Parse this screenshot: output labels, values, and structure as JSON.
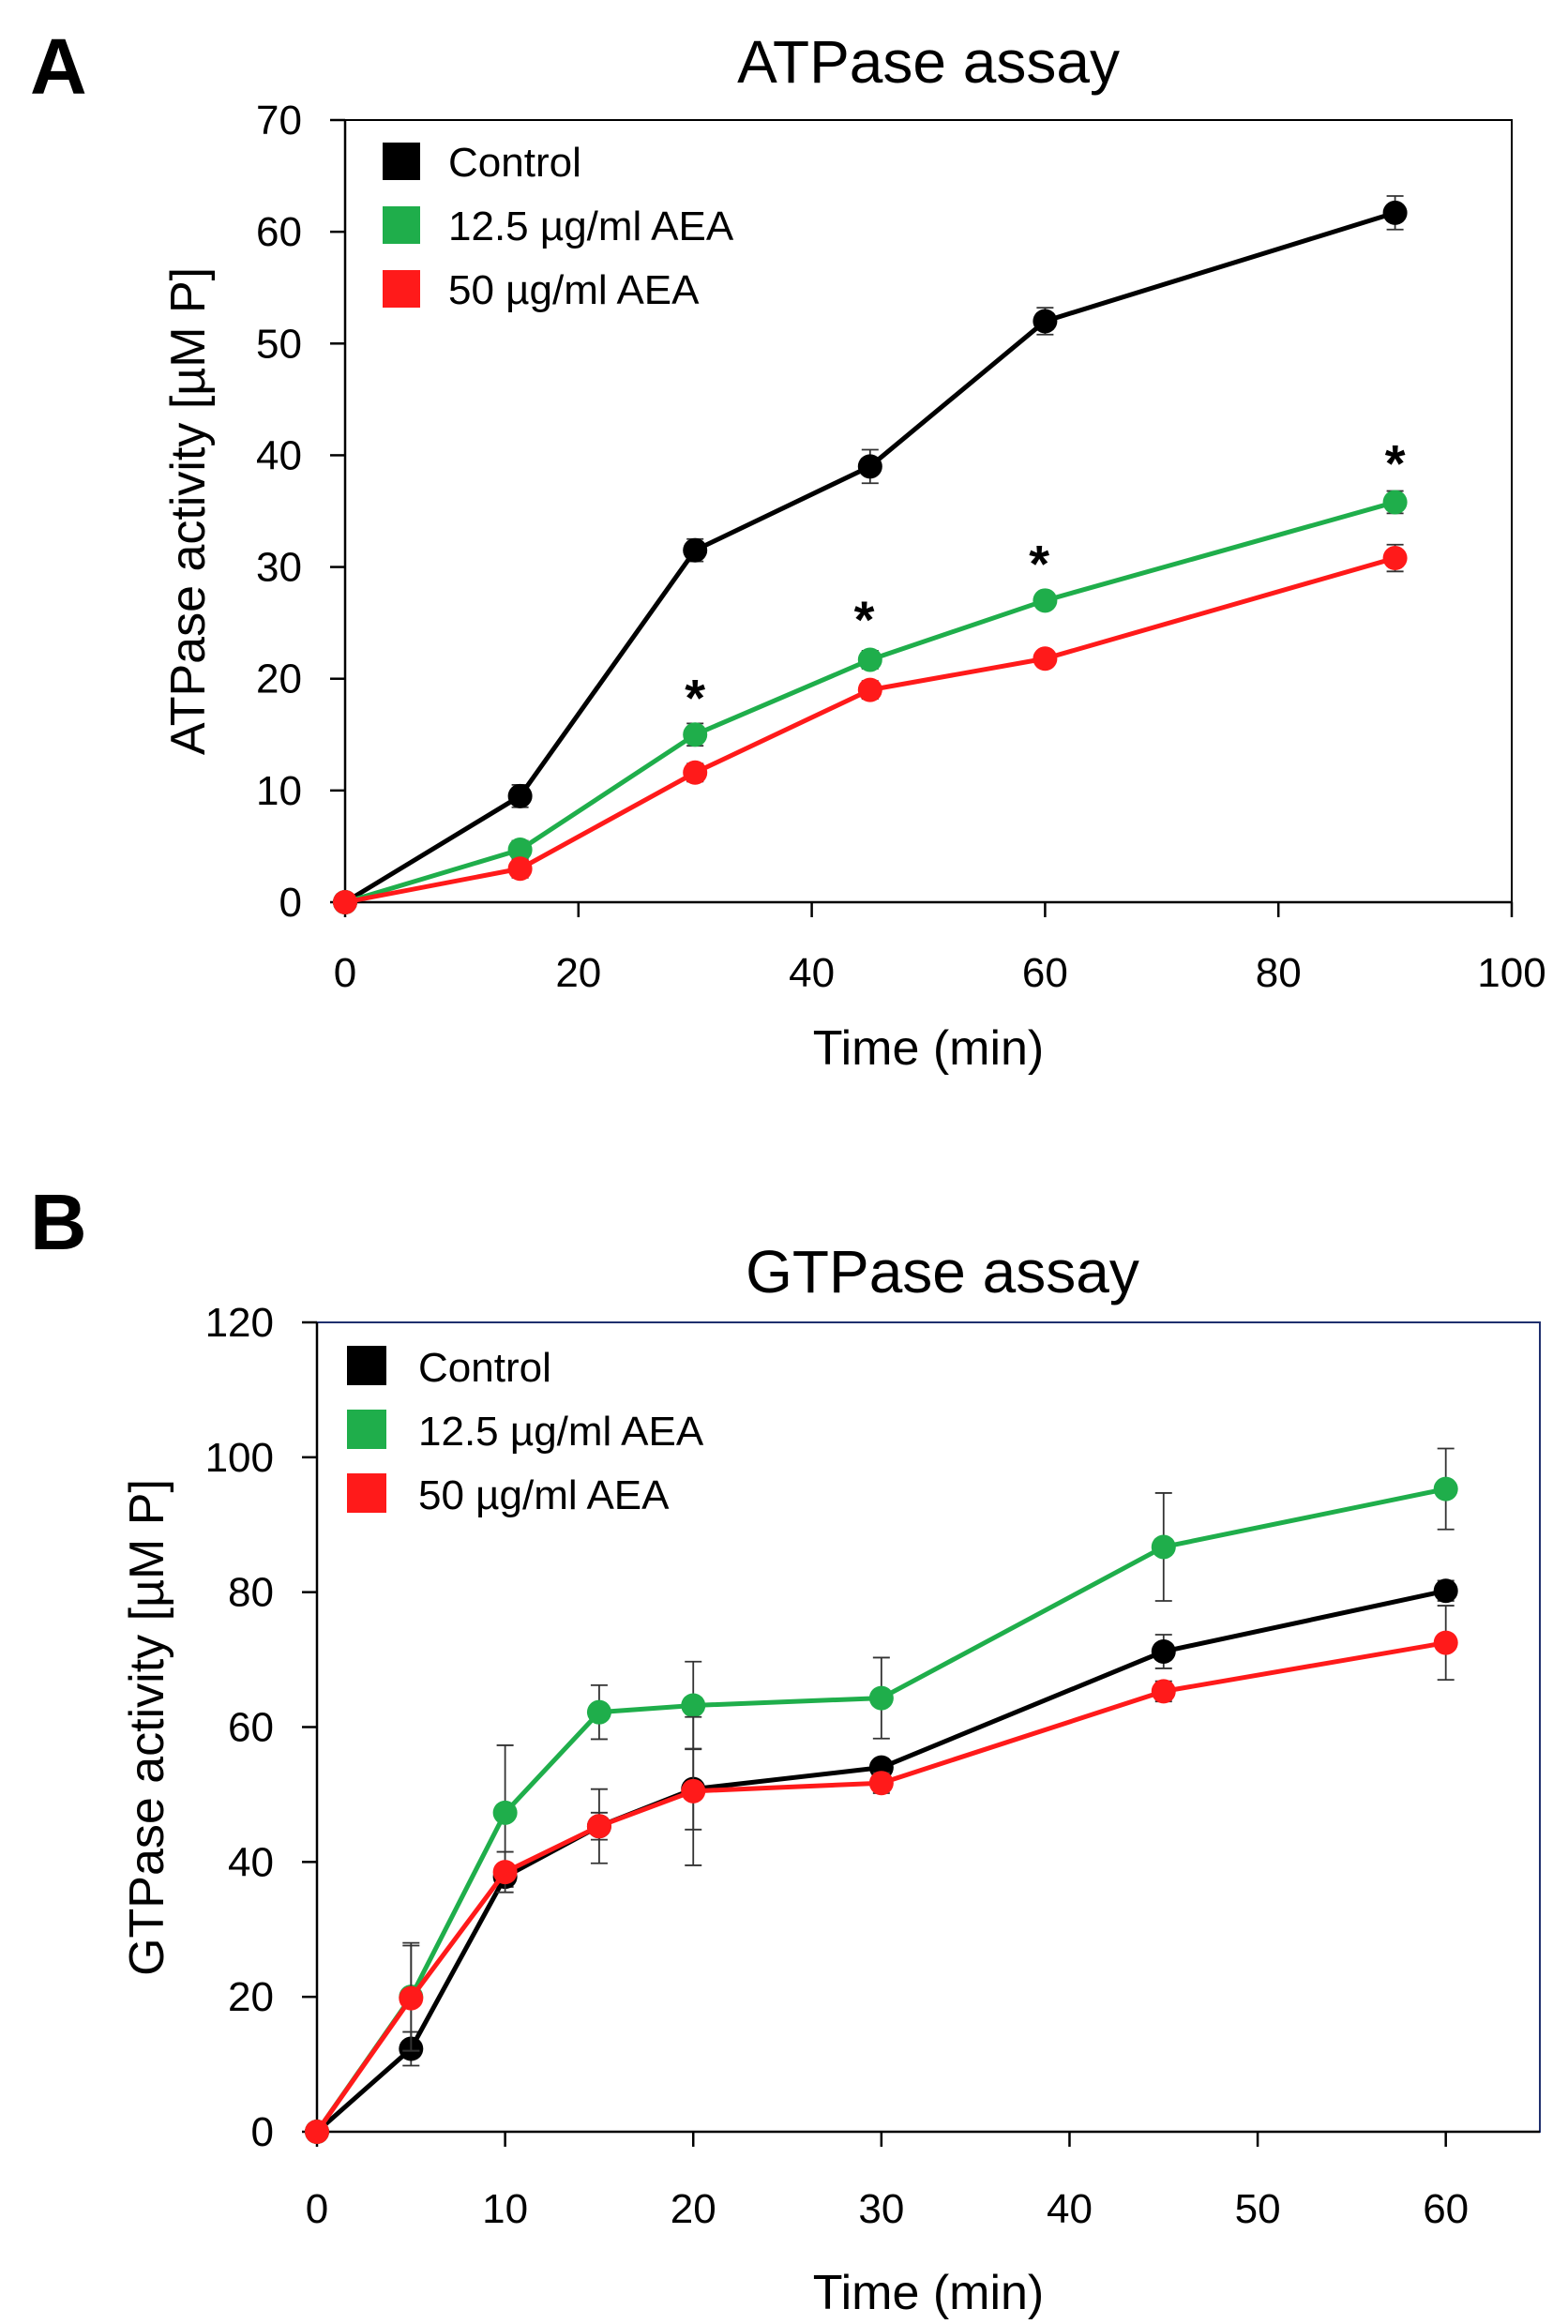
{
  "chart_data": [
    {
      "panel_label": "A",
      "type": "line",
      "title": "ATPase assay",
      "xlabel": "Time (min)",
      "ylabel": "ATPase activity [µM P]",
      "xlim": [
        0,
        100
      ],
      "ylim": [
        0,
        70
      ],
      "xticks": [
        "0",
        "20",
        "40",
        "60",
        "80",
        "100"
      ],
      "yticks": [
        "0",
        "10",
        "20",
        "30",
        "40",
        "50",
        "60",
        "70"
      ],
      "x": [
        0,
        15,
        30,
        45,
        60,
        90
      ],
      "legend_position": "top-left",
      "frame": "black",
      "series": [
        {
          "name": "Control",
          "color": "#000000",
          "values": [
            0,
            9.5,
            31.5,
            39,
            52,
            61.7
          ],
          "errors": [
            0,
            1.0,
            1.0,
            1.5,
            1.2,
            1.5
          ]
        },
        {
          "name": "12.5 µg/ml AEA",
          "color": "#1fae4b",
          "values": [
            0,
            4.7,
            15.0,
            21.7,
            27.0,
            35.8
          ],
          "errors": [
            0,
            0.8,
            1.0,
            0.8,
            0.5,
            1.0
          ]
        },
        {
          "name": "50 µg/ml AEA",
          "color": "#ff1a1a",
          "values": [
            0,
            3.0,
            11.6,
            19.0,
            21.8,
            30.8
          ],
          "errors": [
            0,
            0.8,
            0.8,
            0.8,
            0.5,
            1.2
          ]
        }
      ],
      "annotations": [
        {
          "text": "*",
          "x": 30,
          "y": 18.5
        },
        {
          "text": "*",
          "x": 44.5,
          "y": 25.5
        },
        {
          "text": "*",
          "x": 59.5,
          "y": 30.5
        },
        {
          "text": "*",
          "x": 90,
          "y": 39.5
        }
      ]
    },
    {
      "panel_label": "B",
      "type": "line",
      "title": "GTPase assay",
      "xlabel": "Time (min)",
      "ylabel": "GTPase activity [µM P]",
      "xlim": [
        0,
        65
      ],
      "ylim": [
        0,
        120
      ],
      "xticks": [
        "0",
        "10",
        "20",
        "30",
        "40",
        "50",
        "60"
      ],
      "yticks": [
        "0",
        "20",
        "40",
        "60",
        "80",
        "100",
        "120"
      ],
      "x": [
        0,
        5,
        10,
        15,
        20,
        30,
        45,
        60
      ],
      "legend_position": "top-left",
      "frame": "navy",
      "series": [
        {
          "name": "Control",
          "color": "#000000",
          "values": [
            0,
            12.3,
            37.8,
            45.3,
            50.8,
            54.0,
            71.2,
            80.2
          ],
          "errors": [
            0,
            2.5,
            1.5,
            2.0,
            6.0,
            1.0,
            2.5,
            1.5
          ]
        },
        {
          "name": "12.5 µg/ml AEA",
          "color": "#1fae4b",
          "values": [
            0,
            20.0,
            47.3,
            62.2,
            63.2,
            64.3,
            86.7,
            95.3
          ],
          "errors": [
            0,
            8.0,
            10.0,
            4.0,
            6.5,
            6.0,
            8.0,
            6.0
          ]
        },
        {
          "name": "50 µg/ml AEA",
          "color": "#ff1a1a",
          "values": [
            0,
            19.8,
            38.5,
            45.3,
            50.5,
            51.7,
            65.3,
            72.5
          ],
          "errors": [
            0,
            7.8,
            3.0,
            5.5,
            11.0,
            1.5,
            1.5,
            5.5
          ]
        }
      ],
      "annotations": []
    }
  ]
}
